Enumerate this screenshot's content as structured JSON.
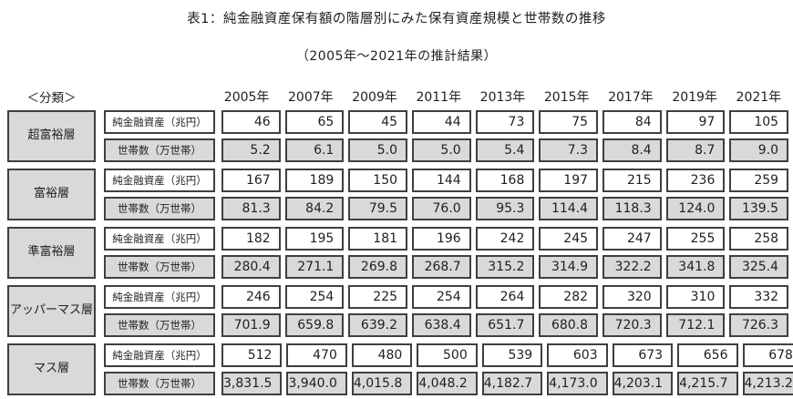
{
  "title": "表1：純金融資産保有額の階層別にみた保有資産規模と世帯数の推移",
  "subtitle": "（2005年～2021年の推計結果）",
  "classification_label": "＜分類＞",
  "years": [
    "2005年",
    "2007年",
    "2009年",
    "2011年",
    "2013年",
    "2015年",
    "2017年",
    "2019年",
    "2021年"
  ],
  "row_labels": {
    "assets": "純金融資産（兆円）",
    "households": "世帯数（万世帯）"
  },
  "colors": {
    "cell_fill_gray": "#d9d9d9",
    "cell_fill_white": "#ffffff",
    "border": "#3f3f3f"
  },
  "tiers": [
    {
      "name": "超富裕層",
      "assets": [
        "46",
        "65",
        "45",
        "44",
        "73",
        "75",
        "84",
        "97",
        "105"
      ],
      "households": [
        "5.2",
        "6.1",
        "5.0",
        "5.0",
        "5.4",
        "7.3",
        "8.4",
        "8.7",
        "9.0"
      ]
    },
    {
      "name": "富裕層",
      "assets": [
        "167",
        "189",
        "150",
        "144",
        "168",
        "197",
        "215",
        "236",
        "259"
      ],
      "households": [
        "81.3",
        "84.2",
        "79.5",
        "76.0",
        "95.3",
        "114.4",
        "118.3",
        "124.0",
        "139.5"
      ]
    },
    {
      "name": "準富裕層",
      "assets": [
        "182",
        "195",
        "181",
        "196",
        "242",
        "245",
        "247",
        "255",
        "258"
      ],
      "households": [
        "280.4",
        "271.1",
        "269.8",
        "268.7",
        "315.2",
        "314.9",
        "322.2",
        "341.8",
        "325.4"
      ]
    },
    {
      "name": "アッパーマス層",
      "assets": [
        "246",
        "254",
        "225",
        "254",
        "264",
        "282",
        "320",
        "310",
        "332"
      ],
      "households": [
        "701.9",
        "659.8",
        "639.2",
        "638.4",
        "651.7",
        "680.8",
        "720.3",
        "712.1",
        "726.3"
      ]
    },
    {
      "name": "マス層",
      "assets": [
        "512",
        "470",
        "480",
        "500",
        "539",
        "603",
        "673",
        "656",
        "678"
      ],
      "households": [
        "3,831.5",
        "3,940.0",
        "4,015.8",
        "4,048.2",
        "4,182.7",
        "4,173.0",
        "4,203.1",
        "4,215.7",
        "4,213.2"
      ]
    }
  ],
  "chart_data": {
    "type": "table",
    "title": "表1：純金融資産保有額の階層別にみた保有資産規模と世帯数の推移（2005年～2021年の推計結果）",
    "categories": [
      "2005年",
      "2007年",
      "2009年",
      "2011年",
      "2013年",
      "2015年",
      "2017年",
      "2019年",
      "2021年"
    ],
    "series": [
      {
        "name": "超富裕層 純金融資産（兆円）",
        "values": [
          46,
          65,
          45,
          44,
          73,
          75,
          84,
          97,
          105
        ]
      },
      {
        "name": "超富裕層 世帯数（万世帯）",
        "values": [
          5.2,
          6.1,
          5.0,
          5.0,
          5.4,
          7.3,
          8.4,
          8.7,
          9.0
        ]
      },
      {
        "name": "富裕層 純金融資産（兆円）",
        "values": [
          167,
          189,
          150,
          144,
          168,
          197,
          215,
          236,
          259
        ]
      },
      {
        "name": "富裕層 世帯数（万世帯）",
        "values": [
          81.3,
          84.2,
          79.5,
          76.0,
          95.3,
          114.4,
          118.3,
          124.0,
          139.5
        ]
      },
      {
        "name": "準富裕層 純金融資産（兆円）",
        "values": [
          182,
          195,
          181,
          196,
          242,
          245,
          247,
          255,
          258
        ]
      },
      {
        "name": "準富裕層 世帯数（万世帯）",
        "values": [
          280.4,
          271.1,
          269.8,
          268.7,
          315.2,
          314.9,
          322.2,
          341.8,
          325.4
        ]
      },
      {
        "name": "アッパーマス層 純金融資産（兆円）",
        "values": [
          246,
          254,
          225,
          254,
          264,
          282,
          320,
          310,
          332
        ]
      },
      {
        "name": "アッパーマス層 世帯数（万世帯）",
        "values": [
          701.9,
          659.8,
          639.2,
          638.4,
          651.7,
          680.8,
          720.3,
          712.1,
          726.3
        ]
      },
      {
        "name": "マス層 純金融資産（兆円）",
        "values": [
          512,
          470,
          480,
          500,
          539,
          603,
          673,
          656,
          678
        ]
      },
      {
        "name": "マス層 世帯数（万世帯）",
        "values": [
          3831.5,
          3940.0,
          4015.8,
          4048.2,
          4182.7,
          4173.0,
          4203.1,
          4215.7,
          4213.2
        ]
      }
    ]
  }
}
